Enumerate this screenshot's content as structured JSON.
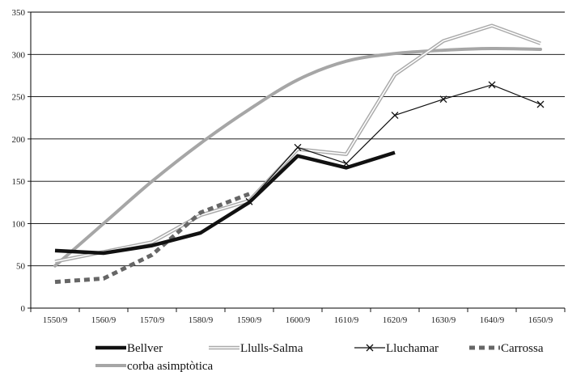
{
  "chart_data": {
    "type": "line",
    "title": "",
    "xlabel": "",
    "ylabel": "",
    "categories": [
      "1550/9",
      "1560/9",
      "1570/9",
      "1580/9",
      "1590/9",
      "1600/9",
      "1610/9",
      "1620/9",
      "1630/9",
      "1640/9",
      "1650/9"
    ],
    "ylim": [
      0,
      350
    ],
    "yticks": [
      0,
      50,
      100,
      150,
      200,
      250,
      300,
      350
    ],
    "grid": "horizontal",
    "legend_position": "bottom",
    "series": [
      {
        "name": "Bellver",
        "style": "thick-solid",
        "color": "#111111",
        "values": [
          68,
          65,
          74,
          89,
          125,
          180,
          166,
          184,
          null,
          null,
          null
        ]
      },
      {
        "name": "Llulls-Salma",
        "style": "double-line",
        "color": "#aaaaaa",
        "points": [
          [
            0,
            55
          ],
          [
            2,
            78
          ],
          [
            3,
            110
          ],
          [
            4,
            127
          ],
          [
            5,
            188
          ],
          [
            6,
            182
          ],
          [
            7,
            276
          ],
          [
            8,
            316
          ],
          [
            9,
            334
          ],
          [
            10,
            313
          ]
        ]
      },
      {
        "name": "Lluchamar",
        "style": "thin-solid-x-markers",
        "color": "#111111",
        "values": [
          null,
          null,
          null,
          null,
          126,
          190,
          171,
          228,
          247,
          264,
          241
        ]
      },
      {
        "name": "Carrossa",
        "style": "thick-dashed",
        "color": "#666666",
        "values": [
          31,
          35,
          63,
          113,
          135,
          null,
          null,
          null,
          null,
          null,
          null
        ]
      },
      {
        "name": "corba asimptòtica",
        "style": "thick-solid-light",
        "color": "#a6a6a6",
        "values": [
          50,
          100,
          150,
          195,
          235,
          270,
          292,
          301,
          305,
          307,
          306
        ]
      }
    ]
  }
}
